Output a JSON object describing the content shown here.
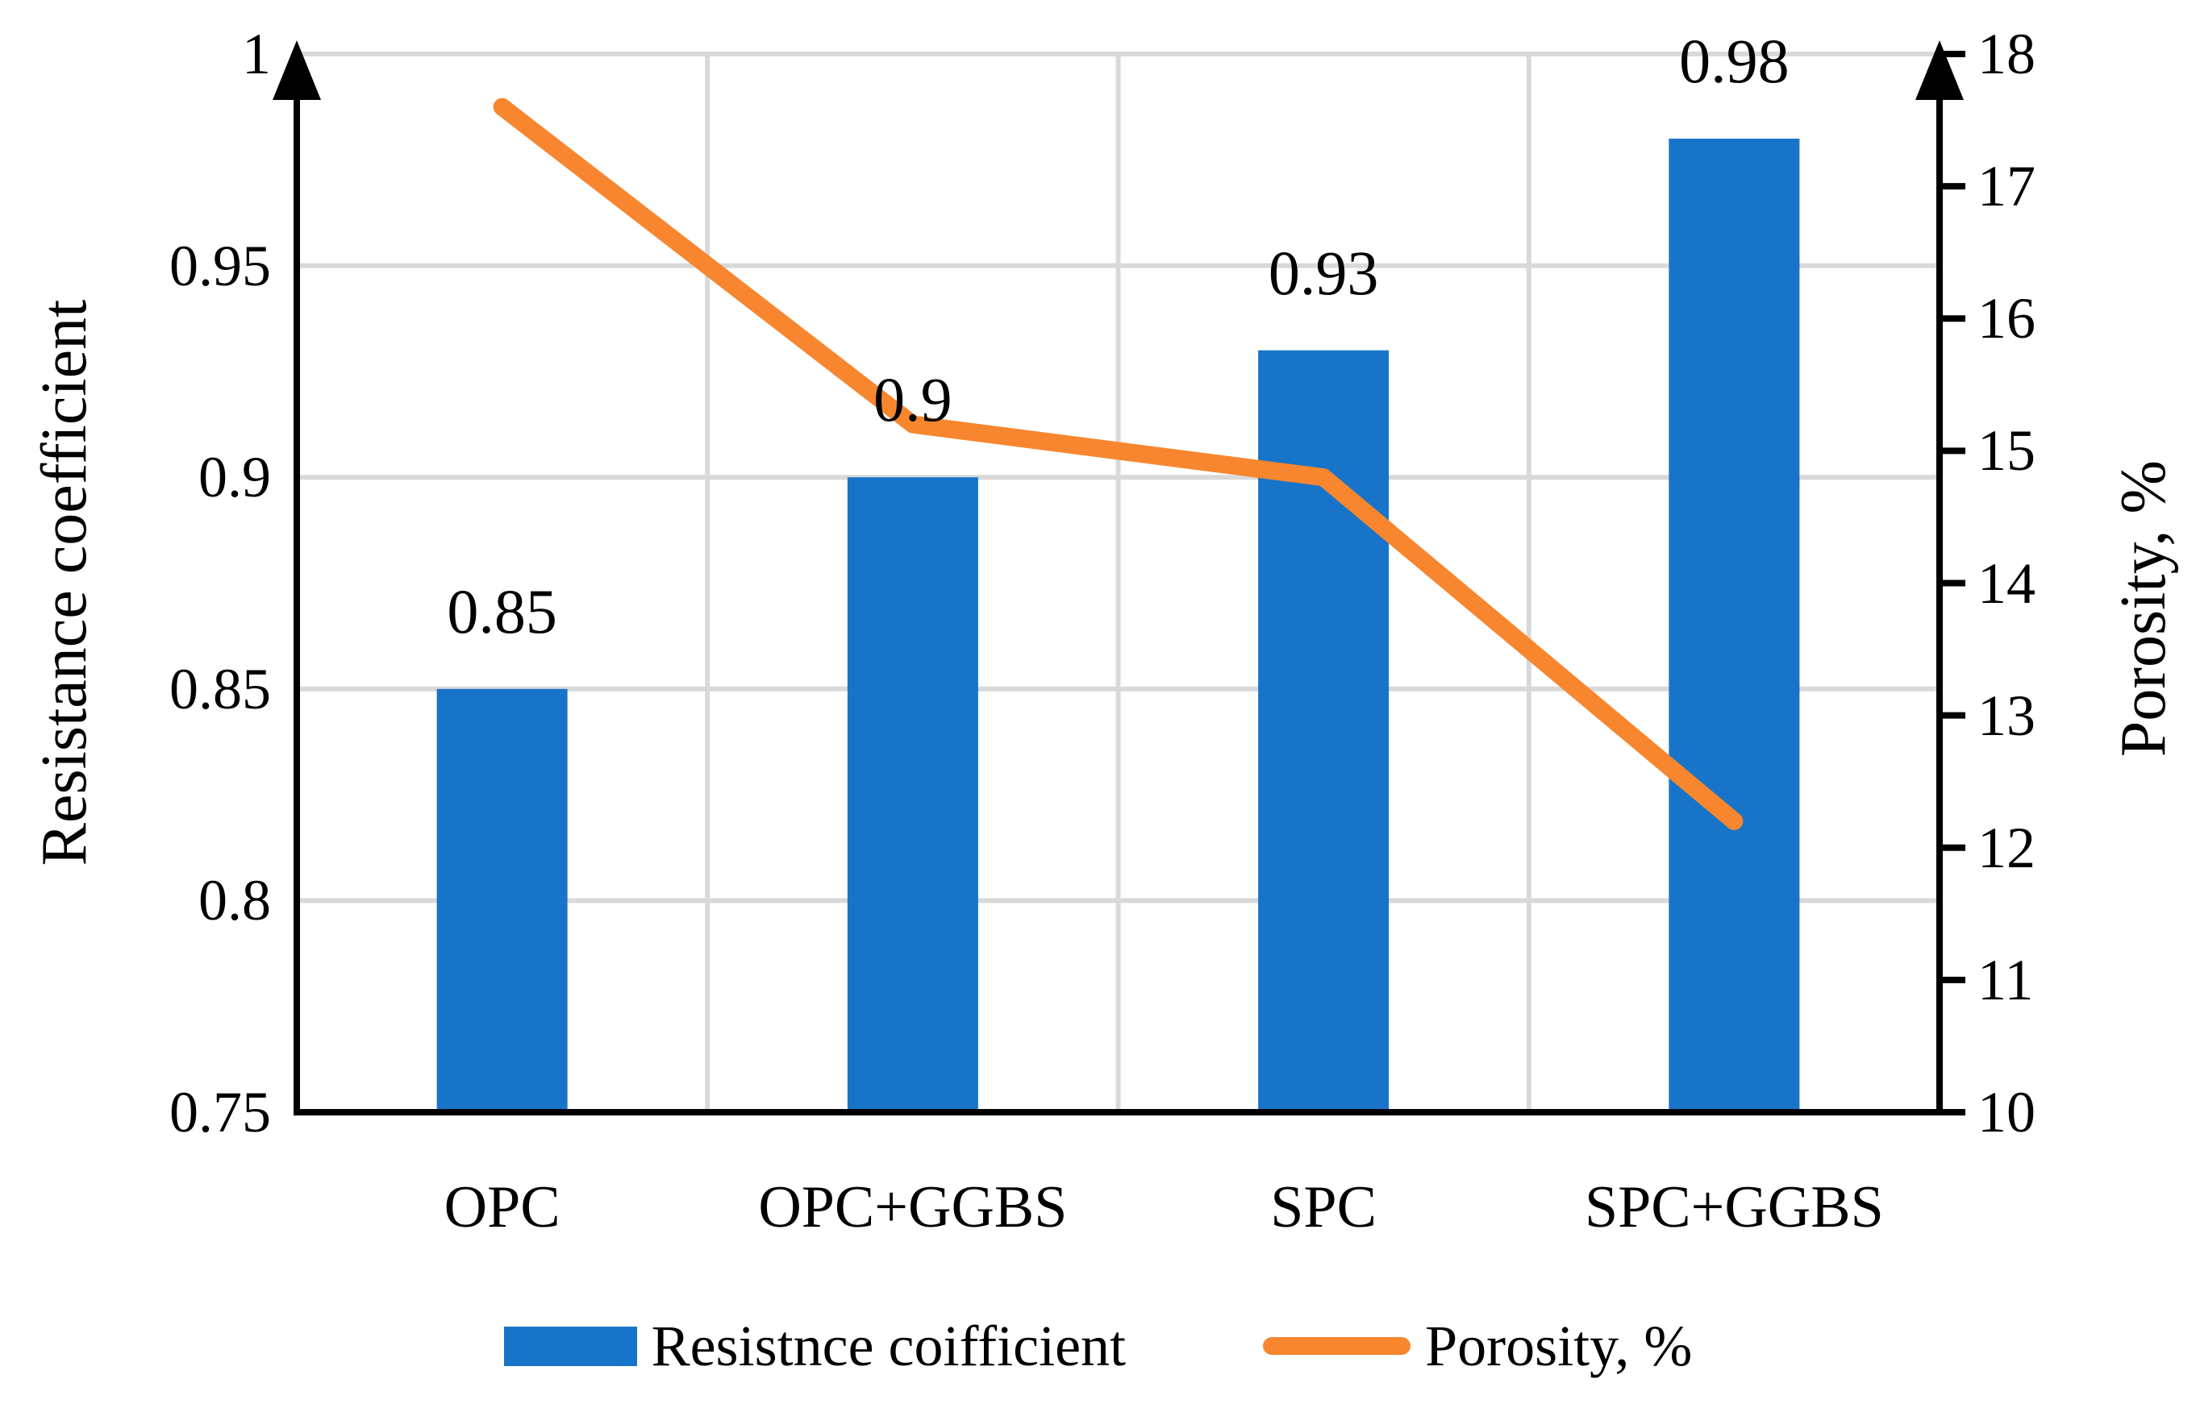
{
  "chart_data": {
    "type": "combo-bar-line",
    "categories": [
      "OPC",
      "OPC+GGBS",
      "SPC",
      "SPC+GGBS"
    ],
    "series": [
      {
        "name": "Resistnce coifficient",
        "type": "bar",
        "axis": "left",
        "color": "#1874C8",
        "values": [
          0.85,
          0.9,
          0.93,
          0.98
        ],
        "data_labels": [
          "0.85",
          "0.9",
          "0.93",
          "0.98"
        ]
      },
      {
        "name": "Porosity, %",
        "type": "line",
        "axis": "right",
        "color": "#F7862F",
        "values": [
          17.6,
          15.2,
          14.8,
          12.2
        ]
      }
    ],
    "left_axis": {
      "label": "Resistance coefficient",
      "min": 0.75,
      "max": 1,
      "step": 0.05,
      "ticks": [
        "0.75",
        "0.8",
        "0.85",
        "0.9",
        "0.95",
        "1"
      ]
    },
    "right_axis": {
      "label": "Porosity, %",
      "min": 10,
      "max": 18,
      "step": 1,
      "ticks": [
        "10",
        "11",
        "12",
        "13",
        "14",
        "15",
        "16",
        "17",
        "18"
      ]
    },
    "gridlines": {
      "horizontal": true,
      "vertical": true,
      "color": "#D9D9D9"
    },
    "axis_color": "#000000",
    "legend_position": "bottom"
  }
}
